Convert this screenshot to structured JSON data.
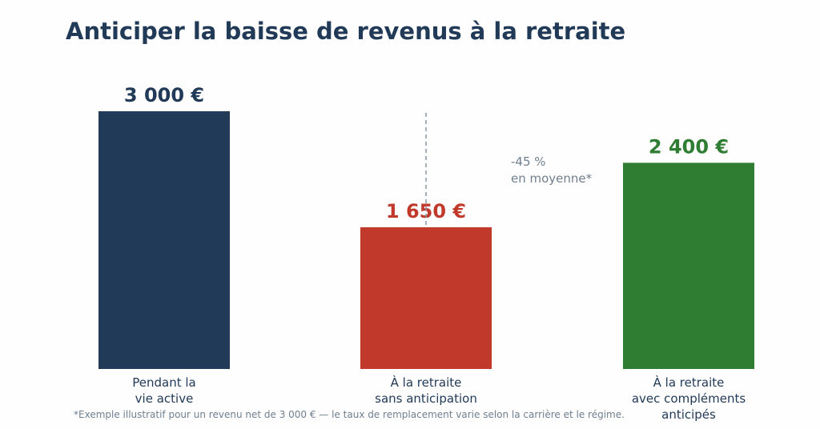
{
  "title": "Anticiper la baisse de revenus à la retraite",
  "footnote": "*Exemple illustratif pour un revenu net de 3 000 € — le taux de remplacement varie selon la carrière et le régime.",
  "annotation": {
    "text_line1": "-45 %",
    "text_line2": "en moyenne*",
    "color": "#6f7f8f",
    "line_color": "#8a96a3"
  },
  "chart_data": {
    "type": "bar",
    "title": "Anticiper la baisse de revenus à la retraite",
    "xlabel": "",
    "ylabel": "",
    "ylim": [
      0,
      3000
    ],
    "grid": false,
    "categories": [
      [
        "Pendant la",
        "vie active"
      ],
      [
        "À la retraite",
        "sans anticipation"
      ],
      [
        "À la retraite",
        "avec compléments",
        "anticipés"
      ]
    ],
    "values": [
      3000,
      1650,
      2400
    ],
    "value_labels": [
      "3 000 €",
      "1 650 €",
      "2 400 €"
    ],
    "colors": [
      "#213a57",
      "#c0392b",
      "#2e7d32"
    ],
    "label_colors": [
      "#213a57",
      "#c0392b",
      "#2e7d32"
    ],
    "category_label_color": "#213a57"
  }
}
